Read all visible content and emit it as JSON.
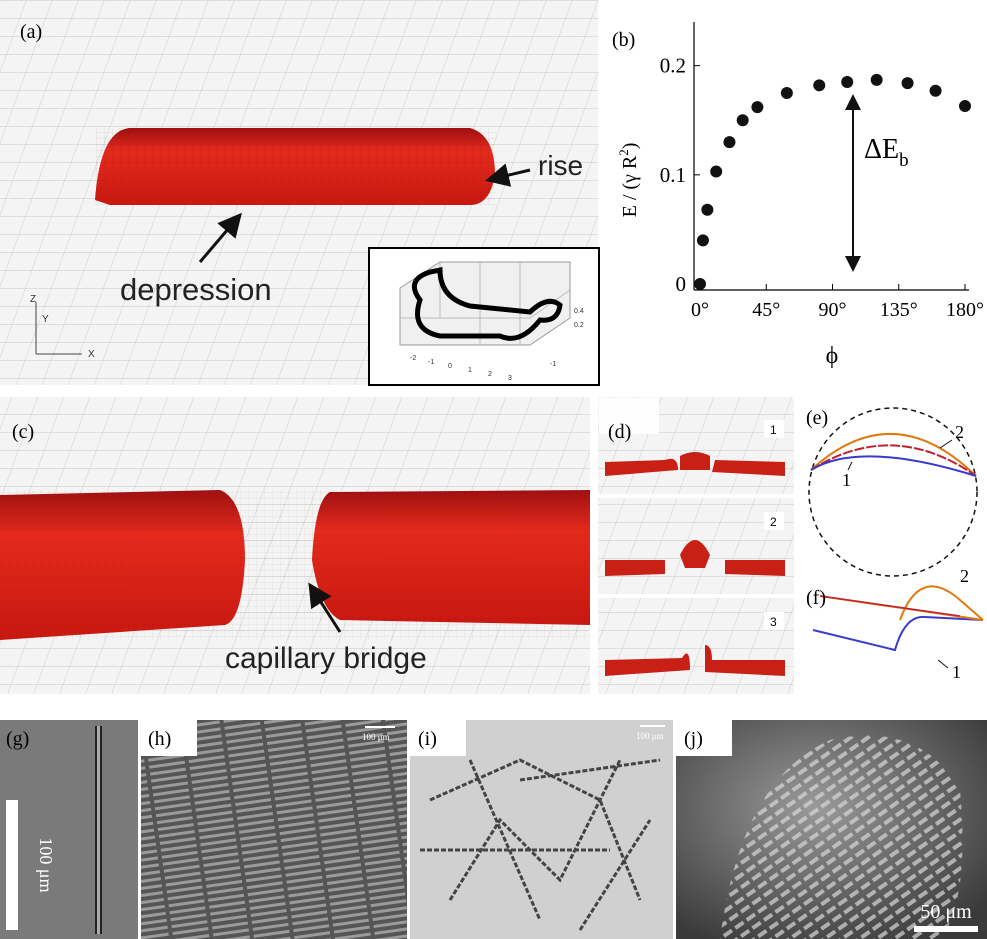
{
  "figure": {
    "a": {
      "label": "(a)",
      "rise": "rise",
      "depression": "depression",
      "axes": [
        "Z",
        "Y",
        "X"
      ],
      "inset_ticks": [
        "-2",
        "-1",
        "0",
        "1",
        "2",
        "3",
        "-1",
        "0.4",
        "0.2"
      ]
    },
    "c": {
      "label": "(c)",
      "bridge": "capillary bridge"
    },
    "d": {
      "label": "(d)",
      "frames": [
        "1",
        "2",
        "3"
      ]
    },
    "e": {
      "label": "(e)",
      "curves": [
        "2",
        "1"
      ]
    },
    "f": {
      "label": "(f)",
      "curves": [
        "2",
        "1"
      ]
    },
    "g": {
      "label": "(g)",
      "scale": "100 μm"
    },
    "h": {
      "label": "(h)",
      "scale": "100 μm"
    },
    "i": {
      "label": "(i)",
      "scale": "100 μm"
    },
    "j": {
      "label": "(j)",
      "scale": "50 μm"
    }
  },
  "chart_data": {
    "type": "scatter",
    "panel_label": "(b)",
    "xlabel": "ϕ",
    "ylabel_parts": [
      "E / (γ R",
      "2",
      ")"
    ],
    "annotation": {
      "main": "ΔE",
      "sub": "b"
    },
    "x": [
      0,
      2,
      5,
      11,
      20,
      29,
      39,
      59,
      81,
      100,
      120,
      141,
      160,
      180
    ],
    "values": [
      0,
      0.04,
      0.068,
      0.103,
      0.13,
      0.15,
      0.162,
      0.175,
      0.182,
      0.185,
      0.187,
      0.184,
      0.177,
      0.163
    ],
    "color": "#111111",
    "xlim": [
      0,
      180
    ],
    "ylim": [
      0,
      0.24
    ],
    "xticks": [
      {
        "value": 0,
        "label": "0°"
      },
      {
        "value": 45,
        "label": "45°"
      },
      {
        "value": 90,
        "label": "90°"
      },
      {
        "value": 135,
        "label": "135°"
      },
      {
        "value": 180,
        "label": "180°"
      }
    ],
    "yticks": [
      0,
      0.1,
      0.2
    ]
  }
}
